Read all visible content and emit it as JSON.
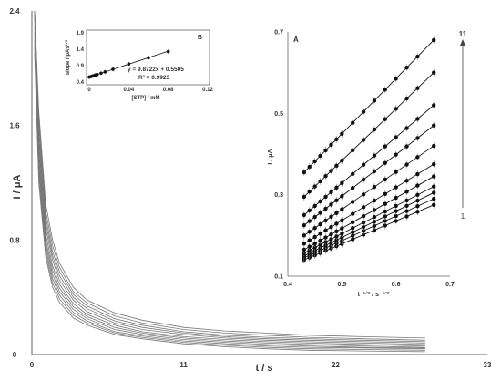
{
  "chart_data": [
    {
      "panel": "main",
      "type": "line",
      "xlabel": "t / s",
      "ylabel": "I / μA",
      "xlim": [
        0,
        33
      ],
      "ylim": [
        0,
        2.4
      ],
      "xticks": [
        "0",
        "11",
        "22",
        "33"
      ],
      "yticks": [
        "0",
        "0.8",
        "1.6",
        "2.4"
      ],
      "x": [
        0.2,
        0.5,
        1,
        1.5,
        2,
        3,
        4,
        6,
        8,
        11,
        14,
        17,
        20,
        24,
        28.5
      ],
      "series": [
        {
          "values": [
            2.6,
            1.7,
            1.05,
            0.8,
            0.64,
            0.47,
            0.38,
            0.29,
            0.24,
            0.19,
            0.165,
            0.15,
            0.135,
            0.125,
            0.115
          ]
        },
        {
          "values": [
            2.55,
            1.65,
            1.0,
            0.76,
            0.61,
            0.44,
            0.36,
            0.27,
            0.22,
            0.175,
            0.15,
            0.135,
            0.12,
            0.11,
            0.1
          ]
        },
        {
          "values": [
            2.5,
            1.6,
            0.96,
            0.72,
            0.58,
            0.42,
            0.34,
            0.25,
            0.205,
            0.16,
            0.135,
            0.12,
            0.11,
            0.1,
            0.09
          ]
        },
        {
          "values": [
            2.45,
            1.55,
            0.92,
            0.69,
            0.55,
            0.4,
            0.32,
            0.235,
            0.19,
            0.15,
            0.125,
            0.11,
            0.1,
            0.09,
            0.08
          ]
        },
        {
          "values": [
            2.4,
            1.5,
            0.88,
            0.66,
            0.52,
            0.38,
            0.3,
            0.22,
            0.175,
            0.14,
            0.115,
            0.1,
            0.09,
            0.08,
            0.07
          ]
        },
        {
          "values": [
            2.35,
            1.45,
            0.84,
            0.62,
            0.49,
            0.355,
            0.28,
            0.205,
            0.16,
            0.125,
            0.105,
            0.09,
            0.08,
            0.07,
            0.06
          ]
        },
        {
          "values": [
            2.3,
            1.4,
            0.8,
            0.59,
            0.465,
            0.335,
            0.265,
            0.19,
            0.15,
            0.115,
            0.095,
            0.08,
            0.07,
            0.06,
            0.05
          ]
        },
        {
          "values": [
            2.25,
            1.35,
            0.77,
            0.56,
            0.44,
            0.315,
            0.25,
            0.175,
            0.14,
            0.105,
            0.085,
            0.07,
            0.06,
            0.05,
            0.045
          ]
        },
        {
          "values": [
            2.2,
            1.3,
            0.74,
            0.53,
            0.415,
            0.295,
            0.235,
            0.16,
            0.13,
            0.095,
            0.075,
            0.06,
            0.05,
            0.045,
            0.04
          ]
        },
        {
          "values": [
            2.15,
            1.25,
            0.71,
            0.5,
            0.39,
            0.275,
            0.22,
            0.15,
            0.12,
            0.085,
            0.065,
            0.05,
            0.04,
            0.035,
            0.03
          ]
        },
        {
          "values": [
            2.1,
            1.2,
            0.68,
            0.47,
            0.365,
            0.255,
            0.205,
            0.14,
            0.11,
            0.075,
            0.055,
            0.04,
            0.03,
            0.025,
            0.02
          ]
        }
      ],
      "annotations": [
        "11",
        "1"
      ]
    },
    {
      "panel": "A",
      "type": "scatter",
      "label": "A",
      "xlabel": "t⁻¹ᐟ² / s⁻¹ᐟ²",
      "ylabel": "I / μA",
      "xlim": [
        0.4,
        0.7
      ],
      "ylim": [
        0.1,
        0.7
      ],
      "xticks": [
        "0.4",
        "0.5",
        "0.6",
        "0.7"
      ],
      "yticks": [
        "0.1",
        "0.3",
        "0.5",
        "0.7"
      ],
      "x": [
        0.43,
        0.44,
        0.45,
        0.46,
        0.47,
        0.48,
        0.49,
        0.5,
        0.52,
        0.54,
        0.56,
        0.58,
        0.6,
        0.62,
        0.64,
        0.67
      ],
      "series": [
        {
          "start": 0.14,
          "end": 0.275
        },
        {
          "start": 0.145,
          "end": 0.29
        },
        {
          "start": 0.15,
          "end": 0.305
        },
        {
          "start": 0.157,
          "end": 0.32
        },
        {
          "start": 0.165,
          "end": 0.345
        },
        {
          "start": 0.18,
          "end": 0.375
        },
        {
          "start": 0.2,
          "end": 0.42
        },
        {
          "start": 0.225,
          "end": 0.47
        },
        {
          "start": 0.25,
          "end": 0.52
        },
        {
          "start": 0.295,
          "end": 0.6
        },
        {
          "start": 0.355,
          "end": 0.68
        }
      ]
    },
    {
      "panel": "B",
      "type": "scatter",
      "label": "B",
      "xlabel": "[STP] / mM",
      "ylabel": "slope / μAs¹ᐟ²",
      "xlim": [
        0,
        0.12
      ],
      "ylim": [
        0.4,
        1.9
      ],
      "xticks": [
        "0",
        "0.04",
        "0.08",
        "0.12"
      ],
      "yticks": [
        "0.4",
        "0.9",
        "1.4",
        "1.9"
      ],
      "x": [
        0.0,
        0.002,
        0.004,
        0.006,
        0.008,
        0.012,
        0.016,
        0.024,
        0.04,
        0.06,
        0.08
      ],
      "y": [
        0.55,
        0.57,
        0.59,
        0.61,
        0.63,
        0.67,
        0.71,
        0.79,
        0.95,
        1.14,
        1.33
      ],
      "equation": "y = 9.8722x + 0.5505",
      "r2": "R² = 0.9923"
    }
  ]
}
